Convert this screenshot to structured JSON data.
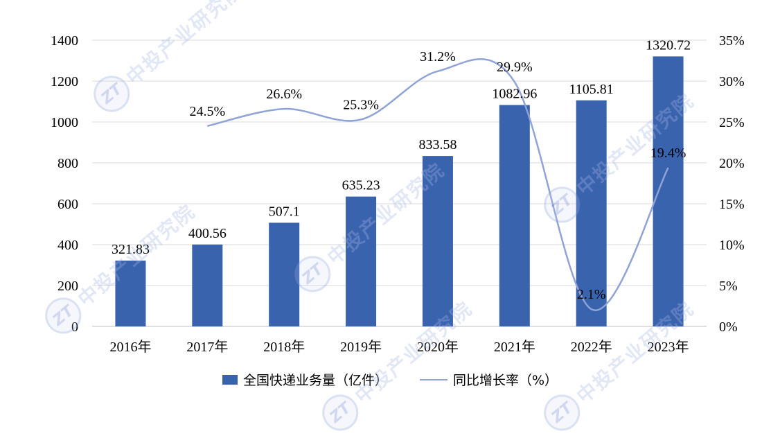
{
  "chart_data": {
    "type": "bar",
    "categories": [
      "2016年",
      "2017年",
      "2018年",
      "2019年",
      "2020年",
      "2021年",
      "2022年",
      "2023年"
    ],
    "series": [
      {
        "name": "全国快递业务量（亿件）",
        "type": "bar",
        "axis": "left",
        "values": [
          321.83,
          400.56,
          507.1,
          635.23,
          833.58,
          1082.96,
          1105.81,
          1320.72
        ],
        "labels": [
          "321.83",
          "400.56",
          "507.1",
          "635.23",
          "833.58",
          "1082.96",
          "1105.81",
          "1320.72"
        ],
        "color": "#3A63AE"
      },
      {
        "name": "同比增长率（%）",
        "type": "line",
        "axis": "right",
        "values": [
          null,
          24.5,
          26.6,
          25.3,
          31.2,
          29.9,
          2.1,
          19.4
        ],
        "labels": [
          "",
          "24.5%",
          "26.6%",
          "25.3%",
          "31.2%",
          "29.9%",
          "2.1%",
          "19.4%"
        ],
        "color": "#8FA3D6"
      }
    ],
    "y_left": {
      "min": 0,
      "max": 1400,
      "step": 200,
      "ticks": [
        "0",
        "200",
        "400",
        "600",
        "800",
        "1000",
        "1200",
        "1400"
      ]
    },
    "y_right": {
      "min": 0,
      "max": 35,
      "step": 5,
      "ticks": [
        "0%",
        "5%",
        "10%",
        "15%",
        "20%",
        "25%",
        "30%",
        "35%"
      ]
    },
    "grid": true,
    "legend": "bottom",
    "title": "",
    "xlabel": "",
    "ylabel": ""
  },
  "watermark": "中投产业研究院"
}
